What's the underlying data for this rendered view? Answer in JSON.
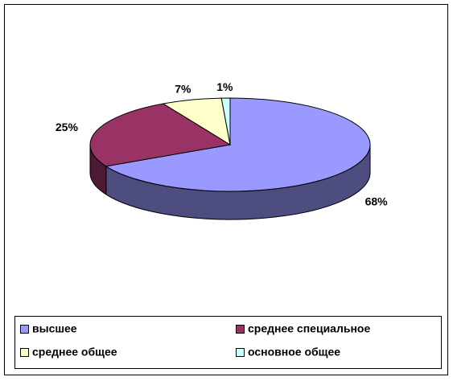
{
  "chart_data": {
    "type": "pie3d",
    "categories": [
      "высшее",
      "среднее специальное",
      "среднее общее",
      "основное общее"
    ],
    "values": [
      68,
      25,
      7,
      1
    ],
    "value_labels": [
      "68%",
      "25%",
      "7%",
      "1%"
    ],
    "colors": [
      "#9999ff",
      "#993366",
      "#ffffcc",
      "#ccffff"
    ],
    "side_colors": [
      "#4d4d80",
      "#4d1a33",
      "#80806a",
      "#6a8080"
    ],
    "legend": "bottom"
  }
}
